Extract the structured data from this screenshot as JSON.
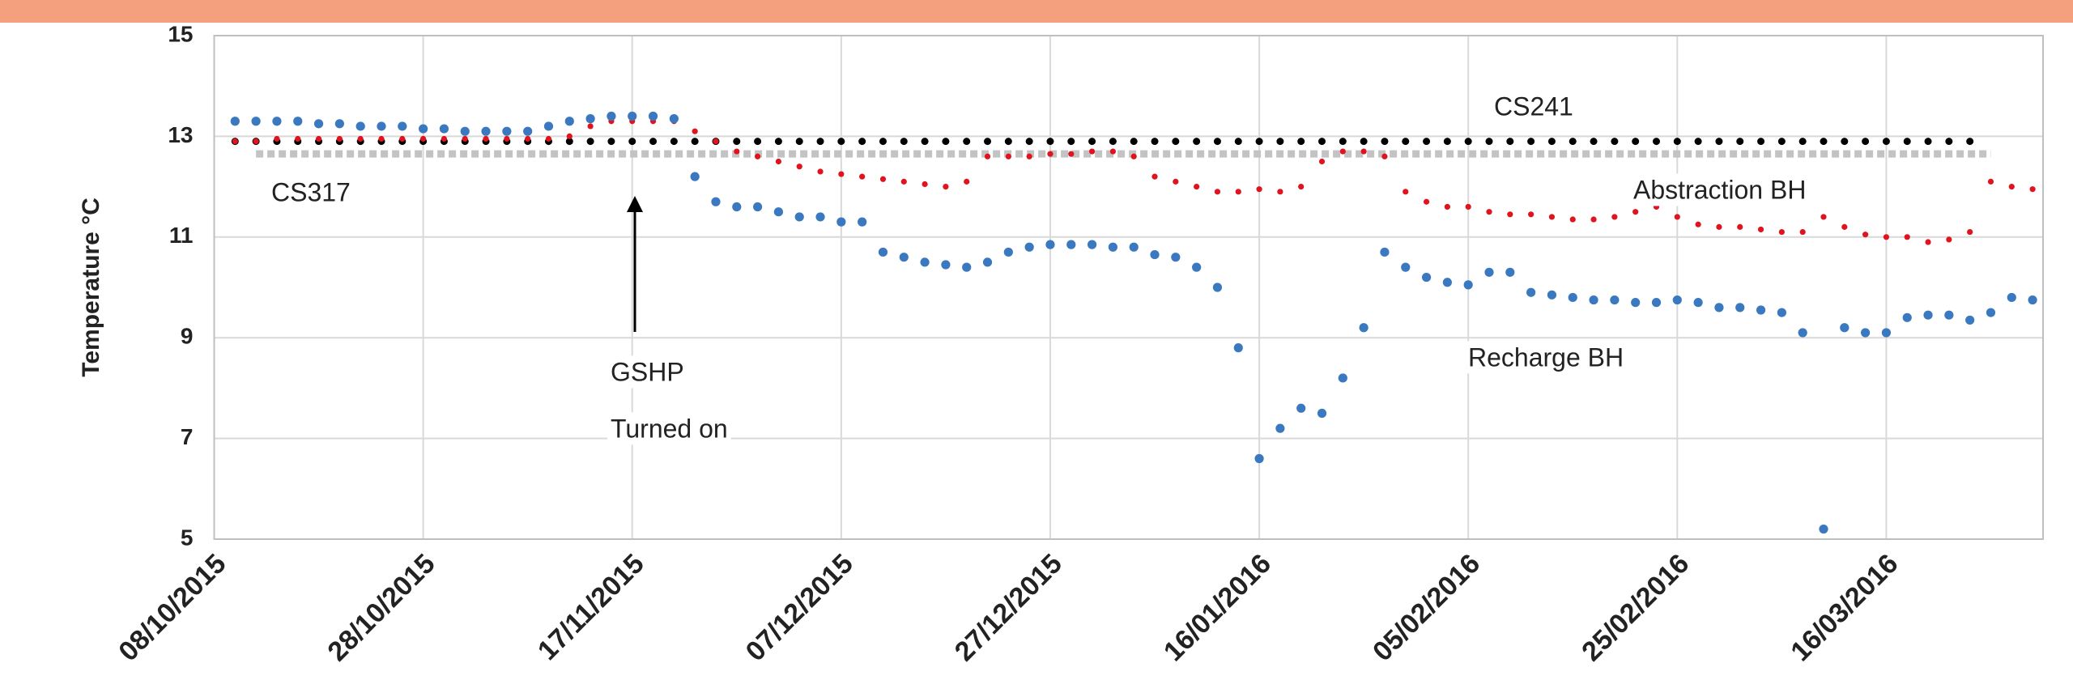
{
  "chart_data": {
    "type": "scatter",
    "y_label": "Temperature °C",
    "annotations": [
      "GSHP",
      "Turned on"
    ],
    "x": [
      "10/10/2015",
      "12/10/2015",
      "14/10/2015",
      "16/10/2015",
      "18/10/2015",
      "20/10/2015",
      "22/10/2015",
      "24/10/2015",
      "26/10/2015",
      "28/10/2015",
      "30/10/2015",
      "01/11/2015",
      "03/11/2015",
      "05/11/2015",
      "07/11/2015",
      "09/11/2015",
      "11/11/2015",
      "13/11/2015",
      "15/11/2015",
      "17/11/2015",
      "19/11/2015",
      "21/11/2015",
      "23/11/2015",
      "25/11/2015",
      "27/11/2015",
      "29/11/2015",
      "01/12/2015",
      "03/12/2015",
      "05/12/2015",
      "07/12/2015",
      "09/12/2015",
      "11/12/2015",
      "13/12/2015",
      "15/12/2015",
      "17/12/2015",
      "19/12/2015",
      "21/12/2015",
      "23/12/2015",
      "25/12/2015",
      "27/12/2015",
      "29/12/2015",
      "31/12/2015",
      "02/01/2016",
      "04/01/2016",
      "06/01/2016",
      "08/01/2016",
      "10/01/2016",
      "12/01/2016",
      "14/01/2016",
      "16/01/2016",
      "18/01/2016",
      "20/01/2016",
      "22/01/2016",
      "24/01/2016",
      "26/01/2016",
      "28/01/2016",
      "30/01/2016",
      "01/02/2016",
      "03/02/2016",
      "05/02/2016",
      "07/02/2016",
      "09/02/2016",
      "11/02/2016",
      "13/02/2016",
      "15/02/2016",
      "17/02/2016",
      "19/02/2016",
      "21/02/2016",
      "23/02/2016",
      "25/02/2016",
      "27/02/2016",
      "29/02/2016",
      "02/03/2016",
      "04/03/2016",
      "06/03/2016",
      "08/03/2016",
      "10/03/2016",
      "12/03/2016",
      "14/03/2016",
      "16/03/2016",
      "18/03/2016",
      "20/03/2016",
      "22/03/2016",
      "24/03/2016",
      "26/03/2016",
      "28/03/2016",
      "30/03/2016"
    ],
    "series": [
      {
        "name": "CS317",
        "color": "#c3c3c3",
        "style": "dashed",
        "values": [
          null,
          12.65,
          12.65,
          12.65,
          12.65,
          12.65,
          12.65,
          12.65,
          12.65,
          12.65,
          12.65,
          12.65,
          12.65,
          12.65,
          12.65,
          12.65,
          12.65,
          12.65,
          12.65,
          12.65,
          12.65,
          12.65,
          12.65,
          12.65,
          12.65,
          12.65,
          12.65,
          12.65,
          12.65,
          12.65,
          12.65,
          12.65,
          12.65,
          12.65,
          12.65,
          12.65,
          12.65,
          12.65,
          12.65,
          12.65,
          12.65,
          12.65,
          12.65,
          12.65,
          12.65,
          12.65,
          12.65,
          12.65,
          12.65,
          12.65,
          12.65,
          12.65,
          12.65,
          12.65,
          12.65,
          12.65,
          12.65,
          12.65,
          12.65,
          12.65,
          12.65,
          12.65,
          12.65,
          12.65,
          12.65,
          12.65,
          12.65,
          12.65,
          12.65,
          12.65,
          12.65,
          12.65,
          12.65,
          12.65,
          12.65,
          12.65,
          12.65,
          12.65,
          12.65,
          12.65,
          12.65,
          12.65,
          12.65,
          12.65,
          12.65,
          null,
          null
        ]
      },
      {
        "name": "CS241",
        "color": "#000000",
        "style": "markers",
        "values": [
          12.9,
          12.9,
          12.9,
          12.9,
          12.9,
          12.9,
          12.9,
          12.9,
          12.9,
          12.9,
          12.9,
          12.9,
          12.9,
          12.9,
          12.9,
          12.9,
          12.9,
          12.9,
          12.9,
          12.9,
          12.9,
          12.9,
          12.9,
          12.9,
          12.9,
          12.9,
          12.9,
          12.9,
          12.9,
          12.9,
          12.9,
          12.9,
          12.9,
          12.9,
          12.9,
          12.9,
          12.9,
          12.9,
          12.9,
          12.9,
          12.9,
          12.9,
          12.9,
          12.9,
          12.9,
          12.9,
          12.9,
          12.9,
          12.9,
          12.9,
          12.9,
          12.9,
          12.9,
          12.9,
          12.9,
          12.9,
          12.9,
          12.9,
          12.9,
          12.9,
          12.9,
          12.9,
          12.9,
          12.9,
          12.9,
          12.9,
          12.9,
          12.9,
          12.9,
          12.9,
          12.9,
          12.9,
          12.9,
          12.9,
          12.9,
          12.9,
          12.9,
          12.9,
          12.9,
          12.9,
          12.9,
          12.9,
          12.9,
          12.9,
          null,
          null,
          null
        ]
      },
      {
        "name": "Abstraction BH",
        "color": "#e0141e",
        "style": "markers",
        "values": [
          12.9,
          12.9,
          12.95,
          12.95,
          12.95,
          12.95,
          12.95,
          12.95,
          12.95,
          12.95,
          12.95,
          12.95,
          12.95,
          12.95,
          12.95,
          12.95,
          13.0,
          13.2,
          13.3,
          13.3,
          13.3,
          13.3,
          13.1,
          12.9,
          12.7,
          12.6,
          12.5,
          12.4,
          12.3,
          12.25,
          12.2,
          12.15,
          12.1,
          12.05,
          12.0,
          12.1,
          12.6,
          12.6,
          12.6,
          12.65,
          12.65,
          12.7,
          12.7,
          12.6,
          12.2,
          12.1,
          12.0,
          11.9,
          11.9,
          11.95,
          11.9,
          12.0,
          12.5,
          12.7,
          12.7,
          12.6,
          11.9,
          11.7,
          11.6,
          11.6,
          11.5,
          11.45,
          11.45,
          11.4,
          11.35,
          11.35,
          11.4,
          11.5,
          11.6,
          11.4,
          11.25,
          11.2,
          11.2,
          11.15,
          11.1,
          11.1,
          11.4,
          11.2,
          11.05,
          11.0,
          11.0,
          10.9,
          10.95,
          11.1,
          12.1,
          12.0,
          11.95
        ]
      },
      {
        "name": "Recharge BH",
        "color": "#3a78bf",
        "style": "markers",
        "values": [
          13.3,
          13.3,
          13.3,
          13.3,
          13.25,
          13.25,
          13.2,
          13.2,
          13.2,
          13.15,
          13.15,
          13.1,
          13.1,
          13.1,
          13.1,
          13.2,
          13.3,
          13.35,
          13.4,
          13.4,
          13.4,
          13.35,
          12.2,
          11.7,
          11.6,
          11.6,
          11.5,
          11.4,
          11.4,
          11.3,
          11.3,
          10.7,
          10.6,
          10.5,
          10.45,
          10.4,
          10.5,
          10.7,
          10.8,
          10.85,
          10.85,
          10.85,
          10.8,
          10.8,
          10.65,
          10.6,
          10.4,
          10.0,
          8.8,
          6.6,
          7.2,
          7.6,
          7.5,
          8.2,
          9.2,
          10.7,
          10.4,
          10.2,
          10.1,
          10.05,
          10.3,
          10.3,
          9.9,
          9.85,
          9.8,
          9.75,
          9.75,
          9.7,
          9.7,
          9.75,
          9.7,
          9.6,
          9.6,
          9.55,
          9.5,
          9.1,
          5.2,
          9.2,
          9.1,
          9.1,
          9.4,
          9.45,
          9.45,
          9.35,
          9.5,
          9.8,
          9.75
        ]
      }
    ],
    "xlim": [
      "08/10/2015",
      "31/03/2016"
    ],
    "xticks": [
      "08/10/2015",
      "28/10/2015",
      "17/11/2015",
      "07/12/2015",
      "27/12/2015",
      "16/01/2016",
      "05/02/2016",
      "25/02/2016",
      "16/03/2016"
    ],
    "ylim": [
      5,
      15
    ],
    "yticks": [
      5,
      7,
      9,
      11,
      13,
      15
    ],
    "grid": true
  }
}
